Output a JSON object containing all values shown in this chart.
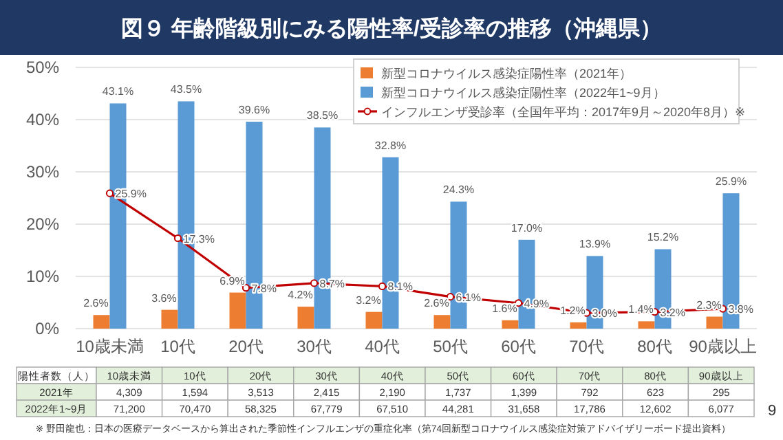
{
  "chart_data": {
    "type": "bar",
    "title": "図９ 年齢階級別にみる陽性率/受診率の推移（沖縄県）",
    "categories": [
      "10歳未満",
      "10代",
      "20代",
      "30代",
      "40代",
      "50代",
      "60代",
      "70代",
      "80代",
      "90歳以上"
    ],
    "series": [
      {
        "name": "新型コロナウイルス感染症陽性率（2021年）",
        "color": "#ed7d31",
        "values": [
          2.6,
          3.6,
          6.9,
          4.2,
          3.2,
          2.6,
          1.6,
          1.2,
          1.4,
          2.3
        ],
        "value_labels": [
          "2.6%",
          "3.6%",
          "6.9%",
          "4.2%",
          "3.2%",
          "2.6%",
          "1.6%",
          "1.2%",
          "1.4%",
          "2.3%"
        ]
      },
      {
        "name": "新型コロナウイルス感染症陽性率（2022年1~9月）",
        "color": "#5b9bd5",
        "values": [
          43.1,
          43.5,
          39.6,
          38.5,
          32.8,
          24.3,
          17.0,
          13.9,
          15.2,
          25.9
        ],
        "value_labels": [
          "43.1%",
          "43.5%",
          "39.6%",
          "38.5%",
          "32.8%",
          "24.3%",
          "17.0%",
          "13.9%",
          "15.2%",
          "25.9%"
        ]
      },
      {
        "name": "インフルエンザ受診率（全国年平均：2017年9月～2020年8月）※",
        "type": "line",
        "color": "#c00000",
        "marker": "circle",
        "values": [
          25.9,
          17.3,
          7.8,
          8.7,
          8.1,
          6.1,
          4.9,
          3.0,
          3.2,
          3.8
        ],
        "value_labels": [
          "25.9%",
          "17.3%",
          "7.8%",
          "8.7%",
          "8.1%",
          "6.1%",
          "4.9%",
          "3.0%",
          "3.2%",
          "3.8%"
        ]
      }
    ],
    "ylim": [
      0,
      50
    ],
    "yticks": [
      {
        "value": 0,
        "label": "0%"
      },
      {
        "value": 10,
        "label": "10%"
      },
      {
        "value": 20,
        "label": "20%"
      },
      {
        "value": 30,
        "label": "30%"
      },
      {
        "value": 40,
        "label": "40%"
      },
      {
        "value": 50,
        "label": "50%"
      }
    ],
    "grid": "y",
    "legend": "top right",
    "annotations": [
      "陽性者数（人）",
      "2021年",
      "4,309",
      "1,594",
      "3,513",
      "2,415",
      "2,190",
      "1,737",
      "1,399",
      "792",
      "623",
      "295",
      "2022年1~9月",
      "71,200",
      "70,470",
      "58,325",
      "67,779",
      "67,510",
      "44,281",
      "31,658",
      "17,786",
      "12,602",
      "6,077",
      "※ 野田龍也：日本の医療データベースから算出された季節性インフルエンザの重症化率（第74回新型コロナウイルス感染症対策アドバイザリーボード提出資料）",
      "9"
    ]
  }
}
